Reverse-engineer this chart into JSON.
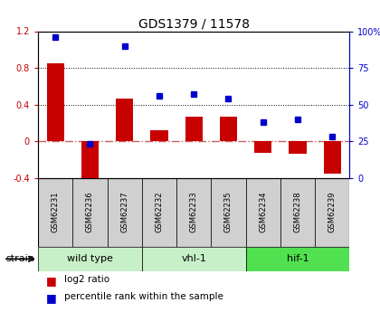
{
  "title": "GDS1379 / 11578",
  "samples": [
    "GSM62231",
    "GSM62236",
    "GSM62237",
    "GSM62232",
    "GSM62233",
    "GSM62235",
    "GSM62234",
    "GSM62238",
    "GSM62239"
  ],
  "log2_ratio": [
    0.85,
    -0.52,
    0.46,
    0.12,
    0.27,
    0.27,
    -0.13,
    -0.14,
    -0.35
  ],
  "percentile_rank": [
    96,
    23,
    90,
    56,
    57,
    54,
    38,
    40,
    28
  ],
  "groups": [
    {
      "label": "wild type",
      "start": 0,
      "end": 3,
      "color": "#c8f0c8"
    },
    {
      "label": "vhl-1",
      "start": 3,
      "end": 6,
      "color": "#c8f0c8"
    },
    {
      "label": "hif-1",
      "start": 6,
      "end": 9,
      "color": "#50e050"
    }
  ],
  "ylim_left": [
    -0.4,
    1.2
  ],
  "ylim_right": [
    0,
    100
  ],
  "yticks_left": [
    -0.4,
    0.0,
    0.4,
    0.8,
    1.2
  ],
  "yticks_right": [
    0,
    25,
    50,
    75,
    100
  ],
  "bar_color": "#c80000",
  "dot_color": "#0000cc",
  "zero_line_color": "#c86060",
  "grid_color": "#000000",
  "bg_color": "#ffffff",
  "bar_width": 0.5,
  "legend_items": [
    "log2 ratio",
    "percentile rank within the sample"
  ],
  "group_colors": [
    "#c8f0c8",
    "#c8f0c8",
    "#50e050"
  ]
}
